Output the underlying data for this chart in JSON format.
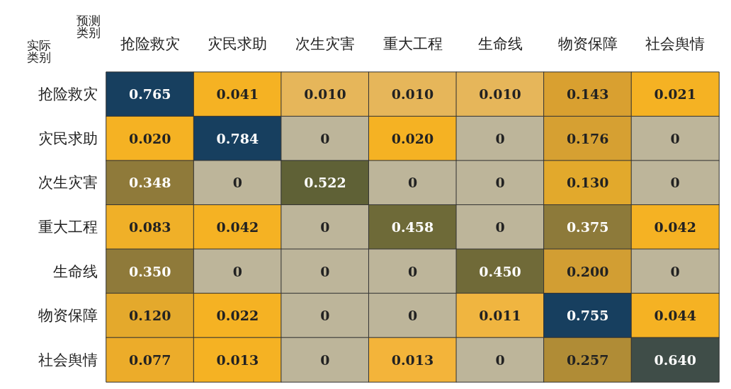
{
  "chart_data": {
    "type": "heatmap",
    "xlabel": "预测类别",
    "ylabel": "实际类别",
    "categories": [
      "抢险救灾",
      "灾民求助",
      "次生灾害",
      "重大工程",
      "生命线",
      "物资保障",
      "社会舆情"
    ],
    "y_categories": [
      "抢险救灾",
      "灾民求助",
      "次生灾害",
      "重大工程",
      "生命线",
      "物资保障",
      "社会舆情"
    ],
    "cells": [
      [
        0.765,
        0.041,
        0.01,
        0.01,
        0.01,
        0.143,
        0.021
      ],
      [
        0.02,
        0.784,
        0,
        0.02,
        0,
        0.176,
        0
      ],
      [
        0.348,
        0,
        0.522,
        0,
        0,
        0.13,
        0
      ],
      [
        0.083,
        0.042,
        0,
        0.458,
        0,
        0.375,
        0.042
      ],
      [
        0.35,
        0,
        0,
        0,
        0.45,
        0.2,
        0
      ],
      [
        0.12,
        0.022,
        0,
        0,
        0.011,
        0.755,
        0.044
      ],
      [
        0.077,
        0.013,
        0,
        0.013,
        0,
        0.257,
        0.64
      ]
    ],
    "cell_labels": [
      [
        "0.765",
        "0.041",
        "0.010",
        "0.010",
        "0.010",
        "0.143",
        "0.021"
      ],
      [
        "0.020",
        "0.784",
        "0",
        "0.020",
        "0",
        "0.176",
        "0"
      ],
      [
        "0.348",
        "0",
        "0.522",
        "0",
        "0",
        "0.130",
        "0"
      ],
      [
        "0.083",
        "0.042",
        "0",
        "0.458",
        "0",
        "0.375",
        "0.042"
      ],
      [
        "0.350",
        "0",
        "0",
        "0",
        "0.450",
        "0.200",
        "0"
      ],
      [
        "0.120",
        "0.022",
        "0",
        "0",
        "0.011",
        "0.755",
        "0.044"
      ],
      [
        "0.077",
        "0.013",
        "0",
        "0.013",
        "0",
        "0.257",
        "0.640"
      ]
    ],
    "colors": [
      [
        "#173f5f",
        "#f5b223",
        "#e6b65a",
        "#e6b65a",
        "#e6b65a",
        "#d9a030",
        "#f5b223"
      ],
      [
        "#f5b223",
        "#173f5f",
        "#bdb59a",
        "#f5b223",
        "#bdb59a",
        "#d6a032",
        "#bdb59a"
      ],
      [
        "#8f7a3a",
        "#bdb59a",
        "#5f6136",
        "#bdb59a",
        "#bdb59a",
        "#e2a92c",
        "#bdb59a"
      ],
      [
        "#f0b028",
        "#f5b223",
        "#bdb59a",
        "#6e6a38",
        "#bdb59a",
        "#8d7a3a",
        "#f5b223"
      ],
      [
        "#8f7a3a",
        "#bdb59a",
        "#bdb59a",
        "#bdb59a",
        "#706a38",
        "#d29e33",
        "#bdb59a"
      ],
      [
        "#e4a92c",
        "#f5b223",
        "#bdb59a",
        "#bdb59a",
        "#f0b540",
        "#173f5f",
        "#f5b223"
      ],
      [
        "#ecac2a",
        "#f5b223",
        "#bdb59a",
        "#f3b43a",
        "#bdb59a",
        "#b08c36",
        "#3f4d48"
      ]
    ]
  }
}
